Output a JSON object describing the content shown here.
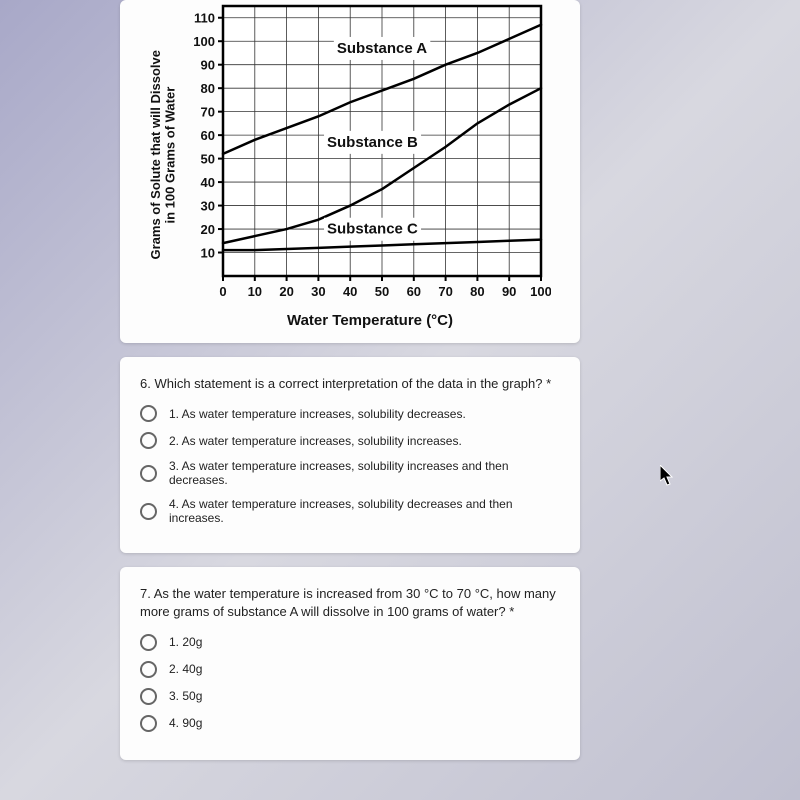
{
  "chart": {
    "ylabel_line1": "Grams of Solute that will Dissolve",
    "ylabel_line2": "in 100 Grams of Water",
    "xlabel": "Water Temperature (°C)",
    "x_ticks": [
      0,
      10,
      20,
      30,
      40,
      50,
      60,
      70,
      80,
      90,
      100
    ],
    "y_ticks": [
      10,
      20,
      30,
      40,
      50,
      60,
      70,
      80,
      90,
      100,
      110
    ],
    "xlim": [
      0,
      100
    ],
    "ylim": [
      0,
      115
    ],
    "grid_color": "#333333",
    "background_color": "#ffffff",
    "border_color": "#000000",
    "line_color": "#000000",
    "line_width": 2.5,
    "series": [
      {
        "name": "Substance A",
        "label_x": 50,
        "label_y": 95,
        "points": [
          [
            0,
            52
          ],
          [
            10,
            58
          ],
          [
            20,
            63
          ],
          [
            30,
            68
          ],
          [
            40,
            74
          ],
          [
            50,
            79
          ],
          [
            60,
            84
          ],
          [
            70,
            90
          ],
          [
            80,
            95
          ],
          [
            90,
            101
          ],
          [
            100,
            107
          ]
        ]
      },
      {
        "name": "Substance B",
        "label_x": 47,
        "label_y": 55,
        "points": [
          [
            0,
            14
          ],
          [
            10,
            17
          ],
          [
            20,
            20
          ],
          [
            30,
            24
          ],
          [
            40,
            30
          ],
          [
            50,
            37
          ],
          [
            60,
            46
          ],
          [
            70,
            55
          ],
          [
            80,
            65
          ],
          [
            90,
            73
          ],
          [
            100,
            80
          ]
        ]
      },
      {
        "name": "Substance C",
        "label_x": 47,
        "label_y": 18,
        "points": [
          [
            0,
            11
          ],
          [
            10,
            11
          ],
          [
            20,
            11.5
          ],
          [
            30,
            12
          ],
          [
            40,
            12.5
          ],
          [
            50,
            13
          ],
          [
            60,
            13.5
          ],
          [
            70,
            14
          ],
          [
            80,
            14.5
          ],
          [
            90,
            15
          ],
          [
            100,
            15.5
          ]
        ]
      }
    ]
  },
  "q6": {
    "prompt": "6. Which statement is a correct interpretation of the data in the graph? *",
    "options": [
      "1. As water temperature increases, solubility decreases.",
      "2. As water temperature increases, solubility increases.",
      "3. As water temperature increases, solubility increases and then decreases.",
      "4. As water temperature increases, solubility decreases and then increases."
    ]
  },
  "q7": {
    "prompt": "7. As the water temperature is increased from 30 °C to 70 °C, how many more grams of substance A will dissolve in 100 grams of water? *",
    "options": [
      "1. 20g",
      "2. 40g",
      "3. 50g",
      "4. 90g"
    ]
  }
}
